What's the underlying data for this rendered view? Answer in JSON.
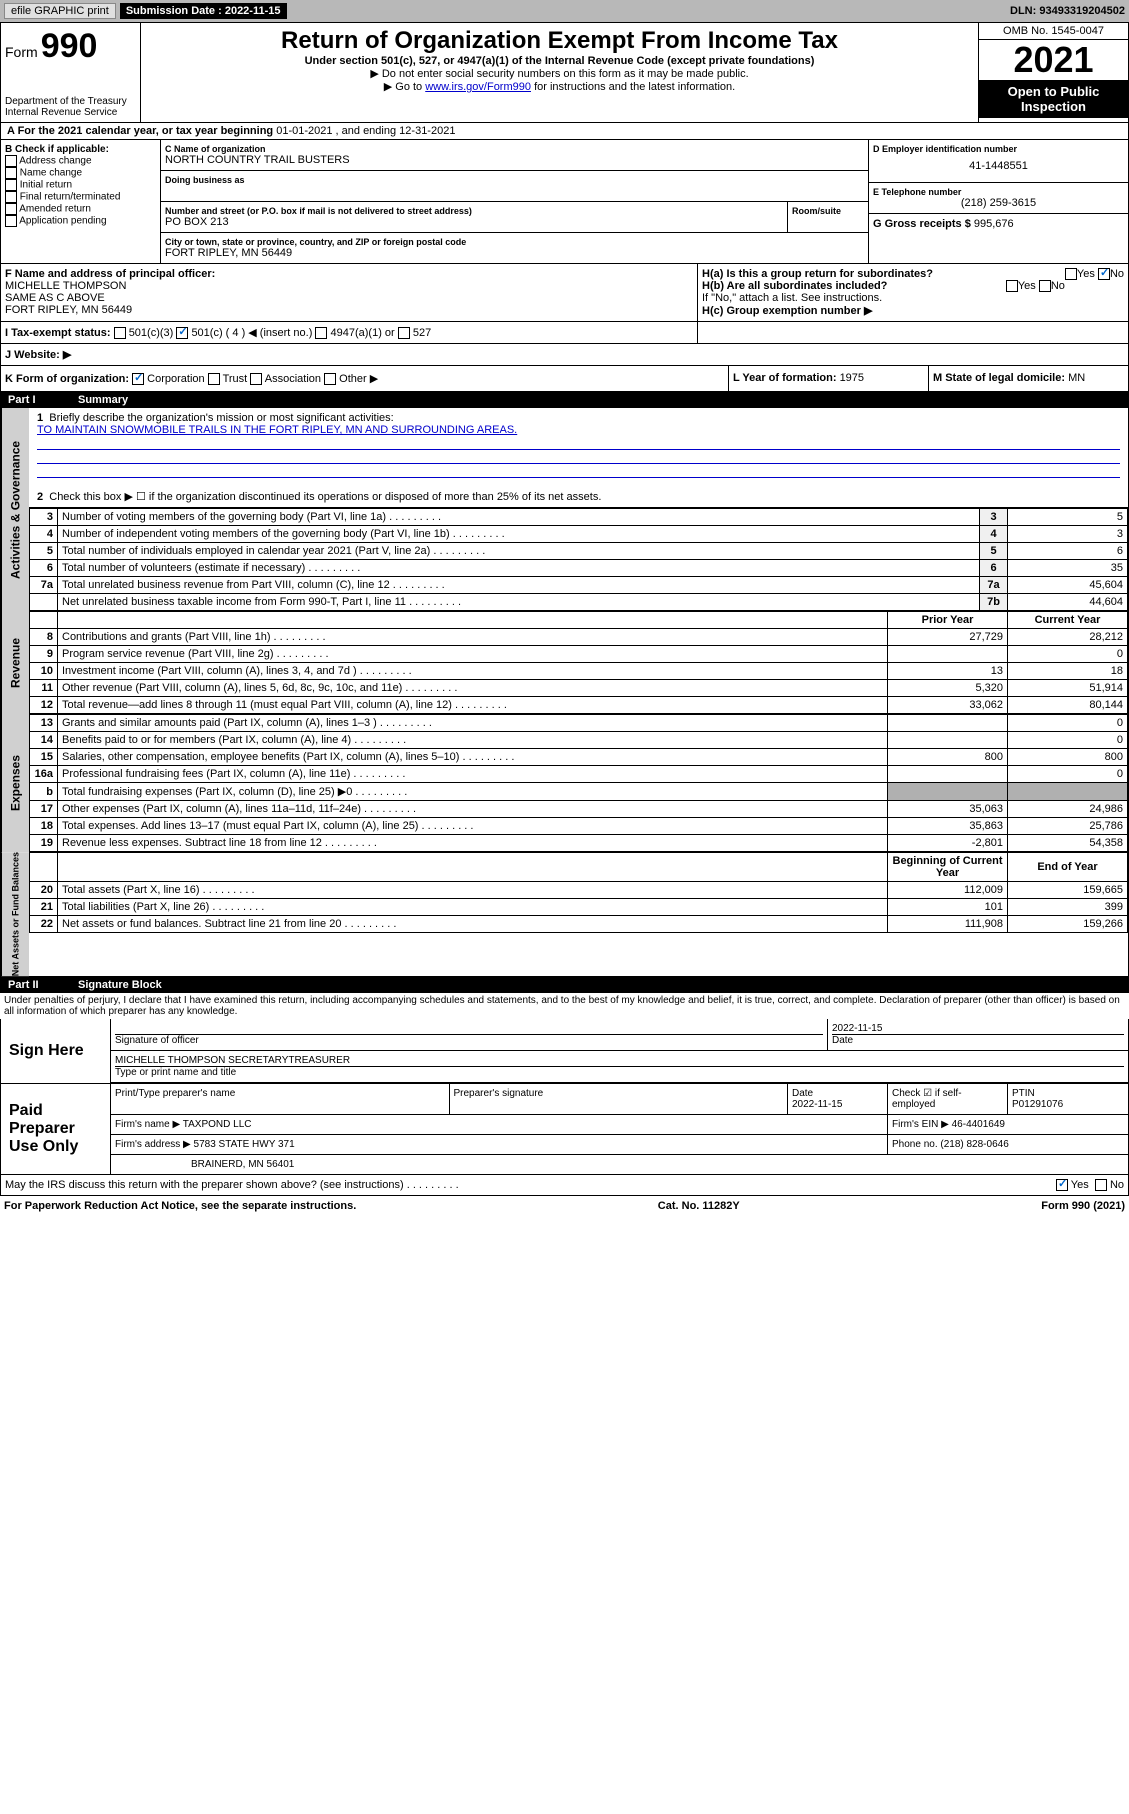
{
  "topbar": {
    "efile": "efile GRAPHIC print",
    "submission_label": "Submission Date : 2022-11-15",
    "dln": "DLN: 93493319204502"
  },
  "header": {
    "form_word": "Form",
    "form_num": "990",
    "dept": "Department of the Treasury",
    "irs": "Internal Revenue Service",
    "title": "Return of Organization Exempt From Income Tax",
    "subtitle": "Under section 501(c), 527, or 4947(a)(1) of the Internal Revenue Code (except private foundations)",
    "note1": "▶ Do not enter social security numbers on this form as it may be made public.",
    "note2_pre": "▶ Go to ",
    "note2_link": "www.irs.gov/Form990",
    "note2_post": " for instructions and the latest information.",
    "omb": "OMB No. 1545-0047",
    "year": "2021",
    "open": "Open to Public Inspection"
  },
  "period": {
    "label_a": "A For the 2021 calendar year, or tax year beginning ",
    "begin": "01-01-2021",
    "mid": " , and ending ",
    "end": "12-31-2021"
  },
  "box_b": {
    "label": "B Check if applicable:",
    "opts": [
      "Address change",
      "Name change",
      "Initial return",
      "Final return/terminated",
      "Amended return",
      "Application pending"
    ]
  },
  "box_c": {
    "name_label": "C Name of organization",
    "name": "NORTH COUNTRY TRAIL BUSTERS",
    "dba_label": "Doing business as",
    "street_label": "Number and street (or P.O. box if mail is not delivered to street address)",
    "street": "PO BOX 213",
    "room_label": "Room/suite",
    "city_label": "City or town, state or province, country, and ZIP or foreign postal code",
    "city": "FORT RIPLEY, MN  56449"
  },
  "box_d": {
    "ein_label": "D Employer identification number",
    "ein": "41-1448551",
    "phone_label": "E Telephone number",
    "phone": "(218) 259-3615",
    "gross_label": "G Gross receipts $ ",
    "gross": "995,676"
  },
  "box_f": {
    "label": "F Name and address of principal officer:",
    "name": "MICHELLE THOMPSON",
    "addr1": "SAME AS C ABOVE",
    "addr2": "FORT RIPLEY, MN  56449"
  },
  "box_h": {
    "ha": "H(a)  Is this a group return for subordinates?",
    "hb": "H(b)  Are all subordinates included?",
    "hnote": "If \"No,\" attach a list. See instructions.",
    "hc": "H(c)  Group exemption number ▶",
    "yes": "Yes",
    "no": "No"
  },
  "box_i": {
    "label": "I  Tax-exempt status:",
    "c3": "501(c)(3)",
    "c": "501(c) ( 4 ) ◀ (insert no.)",
    "a1": "4947(a)(1) or",
    "s527": "527"
  },
  "box_j": {
    "label": "J  Website: ▶"
  },
  "box_k": {
    "label": "K Form of organization:",
    "corp": "Corporation",
    "trust": "Trust",
    "assoc": "Association",
    "other": "Other ▶"
  },
  "box_l": {
    "label": "L Year of formation: ",
    "val": "1975"
  },
  "box_m": {
    "label": "M State of legal domicile: ",
    "val": "MN"
  },
  "part1": {
    "header_num": "Part I",
    "header_title": "Summary",
    "vlabel_gov": "Activities & Governance",
    "vlabel_rev": "Revenue",
    "vlabel_exp": "Expenses",
    "vlabel_net": "Net Assets or Fund Balances",
    "line1_label": "Briefly describe the organization's mission or most significant activities:",
    "line1_text": "TO MAINTAIN SNOWMOBILE TRAILS IN THE FORT RIPLEY, MN AND SURROUNDING AREAS.",
    "line2": "Check this box ▶ ☐  if the organization discontinued its operations or disposed of more than 25% of its net assets.",
    "col_prior": "Prior Year",
    "col_current": "Current Year",
    "col_begin": "Beginning of Current Year",
    "col_end": "End of Year",
    "rows_single": [
      {
        "n": "3",
        "t": "Number of voting members of the governing body (Part VI, line 1a)",
        "box": "3",
        "v": "5"
      },
      {
        "n": "4",
        "t": "Number of independent voting members of the governing body (Part VI, line 1b)",
        "box": "4",
        "v": "3"
      },
      {
        "n": "5",
        "t": "Total number of individuals employed in calendar year 2021 (Part V, line 2a)",
        "box": "5",
        "v": "6"
      },
      {
        "n": "6",
        "t": "Total number of volunteers (estimate if necessary)",
        "box": "6",
        "v": "35"
      },
      {
        "n": "7a",
        "t": "Total unrelated business revenue from Part VIII, column (C), line 12",
        "box": "7a",
        "v": "45,604"
      },
      {
        "n": "",
        "t": "Net unrelated business taxable income from Form 990-T, Part I, line 11",
        "box": "7b",
        "v": "44,604"
      }
    ],
    "rows_rev": [
      {
        "n": "8",
        "t": "Contributions and grants (Part VIII, line 1h)",
        "p": "27,729",
        "c": "28,212"
      },
      {
        "n": "9",
        "t": "Program service revenue (Part VIII, line 2g)",
        "p": "",
        "c": "0"
      },
      {
        "n": "10",
        "t": "Investment income (Part VIII, column (A), lines 3, 4, and 7d )",
        "p": "13",
        "c": "18"
      },
      {
        "n": "11",
        "t": "Other revenue (Part VIII, column (A), lines 5, 6d, 8c, 9c, 10c, and 11e)",
        "p": "5,320",
        "c": "51,914"
      },
      {
        "n": "12",
        "t": "Total revenue—add lines 8 through 11 (must equal Part VIII, column (A), line 12)",
        "p": "33,062",
        "c": "80,144"
      }
    ],
    "rows_exp": [
      {
        "n": "13",
        "t": "Grants and similar amounts paid (Part IX, column (A), lines 1–3 )",
        "p": "",
        "c": "0"
      },
      {
        "n": "14",
        "t": "Benefits paid to or for members (Part IX, column (A), line 4)",
        "p": "",
        "c": "0"
      },
      {
        "n": "15",
        "t": "Salaries, other compensation, employee benefits (Part IX, column (A), lines 5–10)",
        "p": "800",
        "c": "800"
      },
      {
        "n": "16a",
        "t": "Professional fundraising fees (Part IX, column (A), line 11e)",
        "p": "",
        "c": "0"
      },
      {
        "n": "b",
        "t": "Total fundraising expenses (Part IX, column (D), line 25) ▶0",
        "p": "shade",
        "c": "shade"
      },
      {
        "n": "17",
        "t": "Other expenses (Part IX, column (A), lines 11a–11d, 11f–24e)",
        "p": "35,063",
        "c": "24,986"
      },
      {
        "n": "18",
        "t": "Total expenses. Add lines 13–17 (must equal Part IX, column (A), line 25)",
        "p": "35,863",
        "c": "25,786"
      },
      {
        "n": "19",
        "t": "Revenue less expenses. Subtract line 18 from line 12",
        "p": "-2,801",
        "c": "54,358"
      }
    ],
    "rows_net": [
      {
        "n": "20",
        "t": "Total assets (Part X, line 16)",
        "p": "112,009",
        "c": "159,665"
      },
      {
        "n": "21",
        "t": "Total liabilities (Part X, line 26)",
        "p": "101",
        "c": "399"
      },
      {
        "n": "22",
        "t": "Net assets or fund balances. Subtract line 21 from line 20",
        "p": "111,908",
        "c": "159,266"
      }
    ]
  },
  "part2": {
    "header_num": "Part II",
    "header_title": "Signature Block",
    "penalty": "Under penalties of perjury, I declare that I have examined this return, including accompanying schedules and statements, and to the best of my knowledge and belief, it is true, correct, and complete. Declaration of preparer (other than officer) is based on all information of which preparer has any knowledge.",
    "sign_here": "Sign Here",
    "sig_officer": "Signature of officer",
    "sig_date": "2022-11-15",
    "date_label": "Date",
    "officer_name": "MICHELLE THOMPSON SECRETARYTREASURER",
    "type_name": "Type or print name and title",
    "paid_prep": "Paid Preparer Use Only",
    "prep_name_label": "Print/Type preparer's name",
    "prep_sig_label": "Preparer's signature",
    "prep_date": "2022-11-15",
    "check_if": "Check ☑ if self-employed",
    "ptin_label": "PTIN",
    "ptin": "P01291076",
    "firm_name_label": "Firm's name    ▶ ",
    "firm_name": "TAXPOND LLC",
    "firm_ein_label": "Firm's EIN ▶ ",
    "firm_ein": "46-4401649",
    "firm_addr_label": "Firm's address ▶ ",
    "firm_addr1": "5783 STATE HWY 371",
    "firm_addr2": "BRAINERD, MN  56401",
    "phone_label": "Phone no. ",
    "phone": "(218) 828-0646",
    "may_irs": "May the IRS discuss this return with the preparer shown above? (see instructions)",
    "yes": "Yes",
    "no": "No"
  },
  "footer": {
    "left": "For Paperwork Reduction Act Notice, see the separate instructions.",
    "mid": "Cat. No. 11282Y",
    "right": "Form 990 (2021)"
  }
}
